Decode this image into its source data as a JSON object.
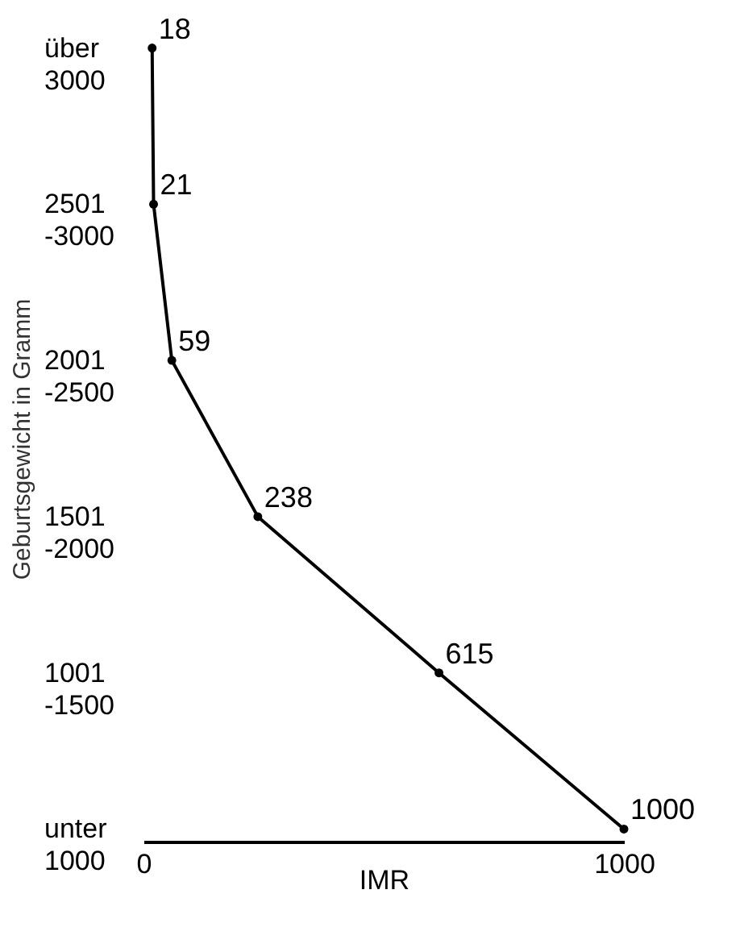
{
  "chart_data": {
    "type": "line",
    "orientation": "horizontal",
    "ylabel": "Geburtsgewicht in Gramm",
    "xlabel": "IMR",
    "categories": [
      "über 3000",
      "2501 -3000",
      "2001 -2500",
      "1501 -2000",
      "1001 -1500",
      "unter 1000"
    ],
    "values": [
      18,
      21,
      59,
      238,
      615,
      1000
    ],
    "color": "#000000",
    "xlim": [
      0,
      1000
    ],
    "xticks": [
      0,
      1000
    ],
    "data_labels": true,
    "marker": "circle",
    "line_style": "solid",
    "grid": false
  }
}
